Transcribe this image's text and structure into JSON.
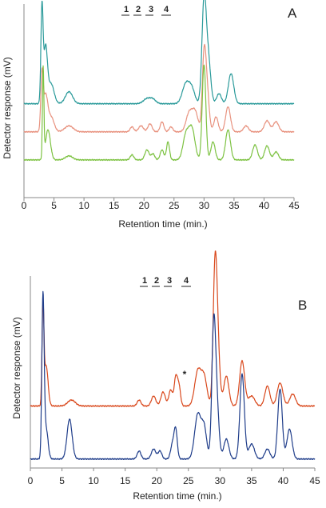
{
  "chart_data": [
    {
      "type": "line",
      "panel": "A",
      "xlabel": "Retention time (min.)",
      "ylabel": "Detector response (mV)",
      "xlim": [
        0,
        45
      ],
      "xticks": [
        "0",
        "5",
        "10",
        "15",
        "20",
        "25",
        "30",
        "35",
        "40",
        "45"
      ],
      "grid": false,
      "fraction_markers": [
        "1",
        "2",
        "3",
        "4"
      ],
      "series": [
        {
          "color": "#2a9a9a",
          "baseline": 0.88,
          "peaks": [
            [
              3.0,
              0.95,
              0.18
            ],
            [
              3.6,
              0.55,
              0.3
            ],
            [
              4.5,
              0.2,
              0.5
            ],
            [
              7.5,
              0.12,
              0.6
            ],
            [
              20.5,
              0.05,
              0.6
            ],
            [
              21.5,
              0.04,
              0.5
            ],
            [
              27,
              0.2,
              0.6
            ],
            [
              28,
              0.13,
              0.5
            ],
            [
              30,
              1.0,
              0.35
            ],
            [
              30.7,
              0.45,
              0.4
            ],
            [
              32.5,
              0.1,
              0.4
            ],
            [
              34.5,
              0.3,
              0.45
            ]
          ]
        },
        {
          "color": "#e8927f",
          "baseline": 0.6,
          "peaks": [
            [
              3.0,
              0.55,
              0.2
            ],
            [
              3.6,
              0.35,
              0.35
            ],
            [
              4.5,
              0.15,
              0.5
            ],
            [
              7.5,
              0.06,
              0.7
            ],
            [
              18,
              0.05,
              0.3
            ],
            [
              19.5,
              0.06,
              0.4
            ],
            [
              21,
              0.08,
              0.35
            ],
            [
              23,
              0.1,
              0.3
            ],
            [
              24.5,
              0.05,
              0.3
            ],
            [
              27.5,
              0.18,
              0.5
            ],
            [
              28.5,
              0.2,
              0.5
            ],
            [
              30,
              0.7,
              0.3
            ],
            [
              30.5,
              0.4,
              0.35
            ],
            [
              32,
              0.15,
              0.35
            ],
            [
              34,
              0.25,
              0.4
            ],
            [
              37,
              0.06,
              0.4
            ],
            [
              40.5,
              0.11,
              0.45
            ],
            [
              42,
              0.1,
              0.45
            ]
          ]
        },
        {
          "color": "#7dc242",
          "baseline": 0.32,
          "peaks": [
            [
              3.2,
              0.9,
              0.12
            ],
            [
              4,
              0.3,
              0.4
            ],
            [
              7.5,
              0.04,
              0.6
            ],
            [
              18,
              0.05,
              0.3
            ],
            [
              20.5,
              0.1,
              0.35
            ],
            [
              21.5,
              0.06,
              0.3
            ],
            [
              23,
              0.1,
              0.3
            ],
            [
              24,
              0.18,
              0.25
            ],
            [
              27,
              0.25,
              0.5
            ],
            [
              28,
              0.3,
              0.5
            ],
            [
              30,
              0.95,
              0.3
            ],
            [
              31.5,
              0.18,
              0.35
            ],
            [
              34,
              0.3,
              0.4
            ],
            [
              38.5,
              0.15,
              0.4
            ],
            [
              40.5,
              0.14,
              0.4
            ],
            [
              42,
              0.08,
              0.4
            ]
          ]
        }
      ]
    },
    {
      "type": "line",
      "panel": "B",
      "xlabel": "Retention time (min.)",
      "ylabel": "Detector response (mV)",
      "xlim": [
        0,
        45
      ],
      "xticks": [
        "0",
        "5",
        "10",
        "15",
        "20",
        "25",
        "30",
        "35",
        "40",
        "45"
      ],
      "grid": false,
      "fraction_markers": [
        "1",
        "2",
        "3",
        "4"
      ],
      "annotation": "*",
      "series": [
        {
          "color": "#d9481c",
          "baseline": 0.58,
          "peaks": [
            [
              2.0,
              0.95,
              0.15
            ],
            [
              2.5,
              0.4,
              0.3
            ],
            [
              6.5,
              0.06,
              0.6
            ],
            [
              17.2,
              0.06,
              0.3
            ],
            [
              19.5,
              0.1,
              0.35
            ],
            [
              21,
              0.14,
              0.35
            ],
            [
              22.2,
              0.16,
              0.3
            ],
            [
              23,
              0.28,
              0.25
            ],
            [
              23.5,
              0.2,
              0.25
            ],
            [
              26.5,
              0.35,
              0.5
            ],
            [
              27.5,
              0.28,
              0.45
            ],
            [
              29.2,
              1.2,
              0.3
            ],
            [
              29.6,
              0.6,
              0.35
            ],
            [
              31,
              0.3,
              0.4
            ],
            [
              33.5,
              0.45,
              0.4
            ],
            [
              35,
              0.1,
              0.5
            ],
            [
              37.5,
              0.2,
              0.4
            ],
            [
              39.5,
              0.23,
              0.45
            ],
            [
              41.5,
              0.12,
              0.45
            ]
          ]
        },
        {
          "color": "#1f3d8a",
          "baseline": 0.05,
          "peaks": [
            [
              2.0,
              1.6,
              0.18
            ],
            [
              2.5,
              0.3,
              0.3
            ],
            [
              6.2,
              0.4,
              0.4
            ],
            [
              17.2,
              0.08,
              0.3
            ],
            [
              19.5,
              0.1,
              0.35
            ],
            [
              20.5,
              0.08,
              0.3
            ],
            [
              22.5,
              0.15,
              0.3
            ],
            [
              23,
              0.28,
              0.25
            ],
            [
              26.5,
              0.45,
              0.5
            ],
            [
              27.5,
              0.3,
              0.4
            ],
            [
              29,
              1.25,
              0.3
            ],
            [
              29.5,
              0.5,
              0.35
            ],
            [
              31,
              0.2,
              0.4
            ],
            [
              33.5,
              0.85,
              0.35
            ],
            [
              35,
              0.15,
              0.45
            ],
            [
              37.5,
              0.1,
              0.4
            ],
            [
              39.5,
              0.7,
              0.35
            ],
            [
              41,
              0.3,
              0.4
            ]
          ]
        }
      ]
    }
  ]
}
